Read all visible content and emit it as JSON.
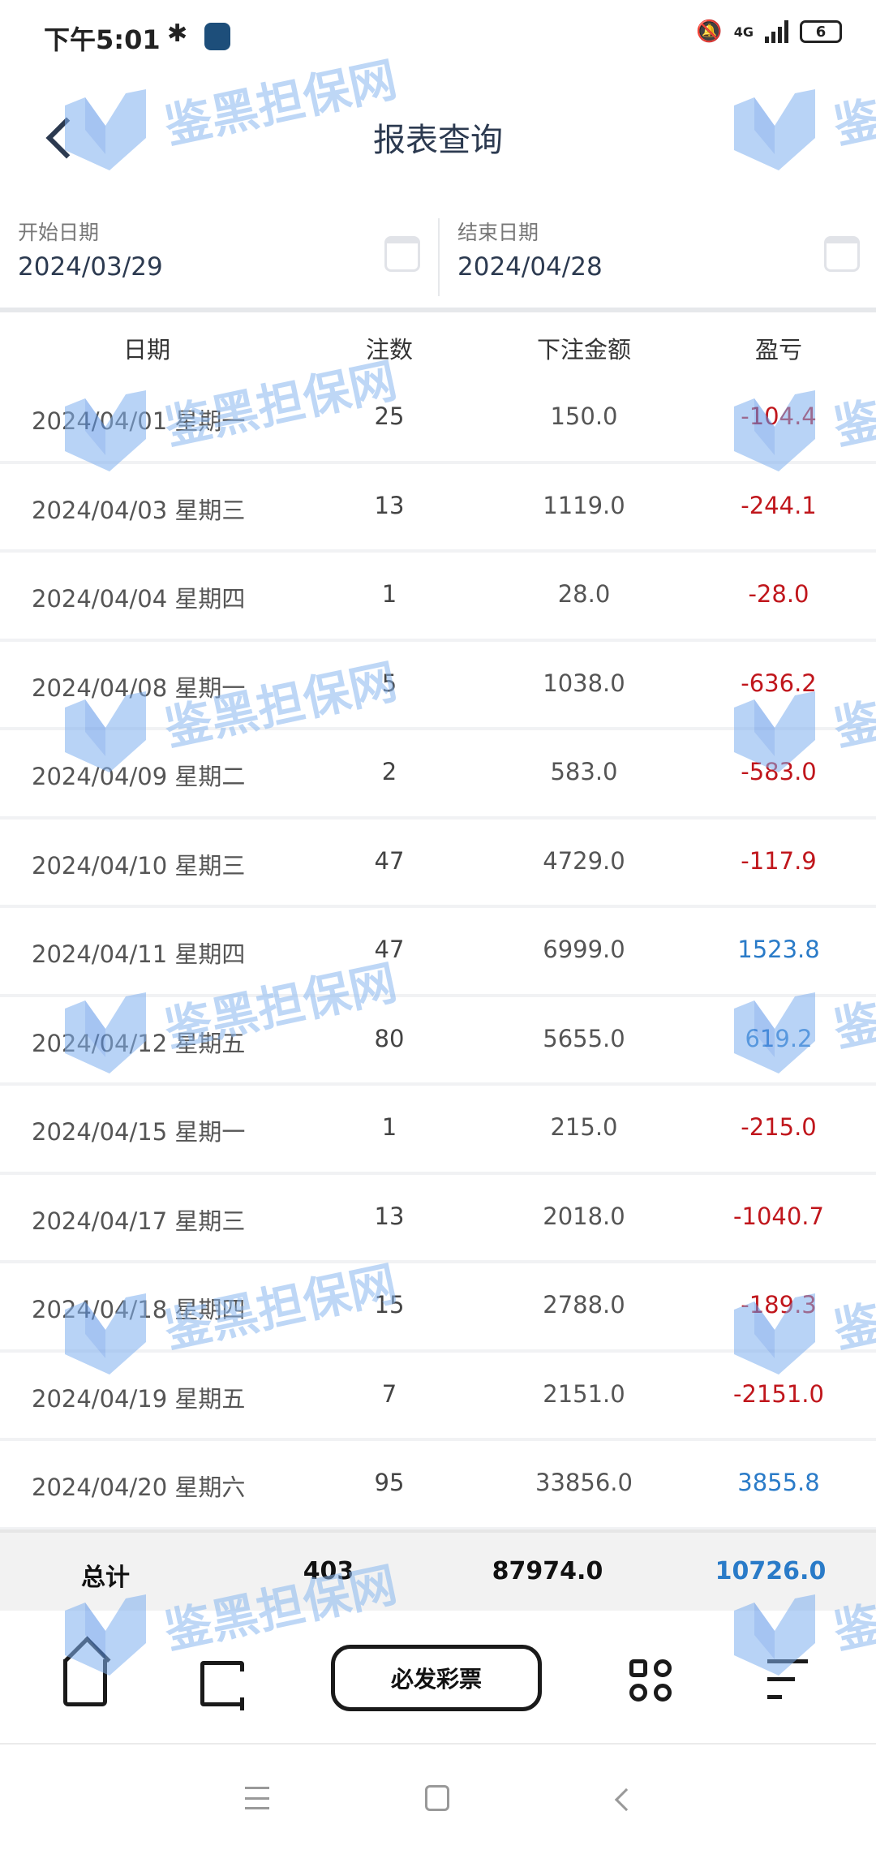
{
  "status_bar": {
    "time": "下午5:01",
    "network": "4G",
    "battery": "6"
  },
  "header": {
    "title": "报表查询"
  },
  "date_range": {
    "start_label": "开始日期",
    "start_value": "2024/03/29",
    "end_label": "结束日期",
    "end_value": "2024/04/28"
  },
  "table": {
    "columns": [
      "日期",
      "注数",
      "下注金额",
      "盈亏"
    ],
    "rows": [
      {
        "date": "2024/04/01 星期一",
        "count": "25",
        "amount": "150.0",
        "pnl": "-104.4"
      },
      {
        "date": "2024/04/03 星期三",
        "count": "13",
        "amount": "1119.0",
        "pnl": "-244.1"
      },
      {
        "date": "2024/04/04 星期四",
        "count": "1",
        "amount": "28.0",
        "pnl": "-28.0"
      },
      {
        "date": "2024/04/08 星期一",
        "count": "5",
        "amount": "1038.0",
        "pnl": "-636.2"
      },
      {
        "date": "2024/04/09 星期二",
        "count": "2",
        "amount": "583.0",
        "pnl": "-583.0"
      },
      {
        "date": "2024/04/10 星期三",
        "count": "47",
        "amount": "4729.0",
        "pnl": "-117.9"
      },
      {
        "date": "2024/04/11 星期四",
        "count": "47",
        "amount": "6999.0",
        "pnl": "1523.8"
      },
      {
        "date": "2024/04/12 星期五",
        "count": "80",
        "amount": "5655.0",
        "pnl": "619.2"
      },
      {
        "date": "2024/04/15 星期一",
        "count": "1",
        "amount": "215.0",
        "pnl": "-215.0"
      },
      {
        "date": "2024/04/17 星期三",
        "count": "13",
        "amount": "2018.0",
        "pnl": "-1040.7"
      },
      {
        "date": "2024/04/18 星期四",
        "count": "15",
        "amount": "2788.0",
        "pnl": "-189.3"
      },
      {
        "date": "2024/04/19 星期五",
        "count": "7",
        "amount": "2151.0",
        "pnl": "-2151.0"
      },
      {
        "date": "2024/04/20 星期六",
        "count": "95",
        "amount": "33856.0",
        "pnl": "3855.8"
      }
    ]
  },
  "summary": {
    "label": "总计",
    "count": "403",
    "amount": "87974.0",
    "pnl": "10726.0"
  },
  "bottom_nav": {
    "center_button": "必发彩票",
    "icons": [
      "home-icon",
      "orders-icon",
      "apps-icon",
      "menu-icon"
    ]
  },
  "watermark": {
    "text": "鉴黑担保网"
  },
  "colors": {
    "negative": "#c0161c",
    "positive": "#2a7bc8",
    "title": "#2c3a50"
  }
}
